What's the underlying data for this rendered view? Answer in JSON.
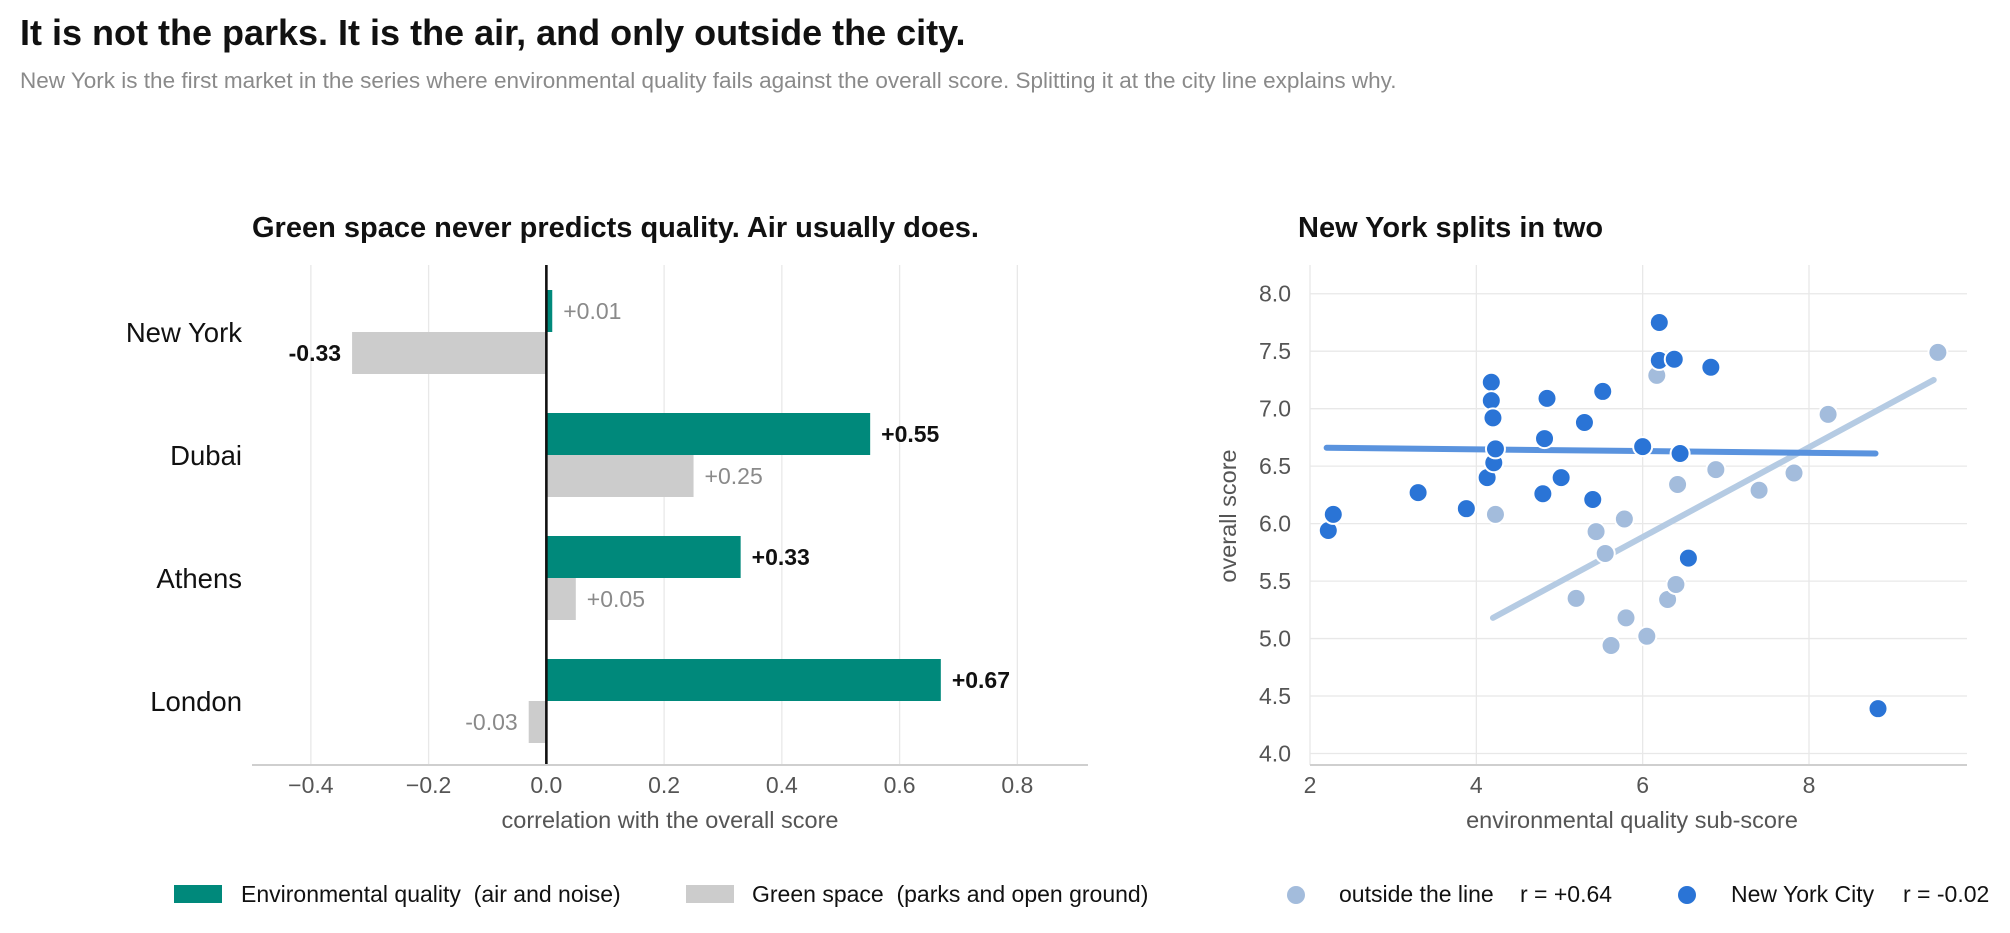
{
  "title": "It is not the parks. It is the air, and only outside the city.",
  "subtitle": "New York is the first market in the series where environmental quality fails against the overall score. Splitting it at the city line explains why.",
  "colors": {
    "environmental": "#00897b",
    "green_space": "#cccccc",
    "outside": "#a3bcdc",
    "nyc": "#2a74d6",
    "outside_fit": "#b5cbe3",
    "nyc_fit": "#5a93de"
  },
  "chart_data": [
    {
      "type": "bar",
      "title": "Green space never predicts quality. Air usually does.",
      "xlabel": "correlation with the overall score",
      "ylabel": "",
      "xlim": [
        -0.5,
        0.92
      ],
      "xticks": [
        "−0.4",
        "−0.2",
        "0.0",
        "0.2",
        "0.4",
        "0.6",
        "0.8"
      ],
      "xtick_values": [
        -0.4,
        -0.2,
        0.0,
        0.2,
        0.4,
        0.6,
        0.8
      ],
      "grid": true,
      "legend_position": "bottom",
      "categories": [
        "New York",
        "Dubai",
        "Athens",
        "London"
      ],
      "series": [
        {
          "name": "Environmental quality  (air and noise)",
          "values": [
            0.01,
            0.55,
            0.33,
            0.67
          ],
          "labels": [
            "+0.01",
            "+0.55",
            "+0.33",
            "+0.67"
          ],
          "label_emphasis": [
            false,
            true,
            true,
            true
          ]
        },
        {
          "name": "Green space  (parks and open ground)",
          "values": [
            -0.33,
            0.25,
            0.05,
            -0.03
          ],
          "labels": [
            "-0.33",
            "+0.25",
            "+0.05",
            "-0.03"
          ],
          "label_emphasis": [
            true,
            false,
            false,
            false
          ]
        }
      ]
    },
    {
      "type": "scatter",
      "title": "New York splits in two",
      "xlabel": "environmental quality sub-score",
      "ylabel": "overall score",
      "xlim": [
        2,
        9.9
      ],
      "ylim": [
        3.9,
        8.25
      ],
      "xticks": [
        "2",
        "4",
        "6",
        "8"
      ],
      "xtick_values": [
        2,
        4,
        6,
        8
      ],
      "yticks": [
        "4.0",
        "4.5",
        "5.0",
        "5.5",
        "6.0",
        "6.5",
        "7.0",
        "7.5",
        "8.0"
      ],
      "ytick_values": [
        4.0,
        4.5,
        5.0,
        5.5,
        6.0,
        6.5,
        7.0,
        7.5,
        8.0
      ],
      "grid": true,
      "legend_position": "bottom",
      "series": [
        {
          "name": "outside the line",
          "stat": "r = +0.64",
          "points": [
            [
              4.23,
              6.08
            ],
            [
              5.2,
              5.35
            ],
            [
              5.44,
              5.93
            ],
            [
              5.55,
              5.74
            ],
            [
              5.62,
              4.94
            ],
            [
              5.78,
              6.04
            ],
            [
              5.8,
              5.18
            ],
            [
              6.05,
              5.02
            ],
            [
              6.17,
              7.29
            ],
            [
              6.3,
              5.34
            ],
            [
              6.4,
              5.47
            ],
            [
              6.42,
              6.34
            ],
            [
              6.88,
              6.47
            ],
            [
              7.4,
              6.29
            ],
            [
              7.82,
              6.44
            ],
            [
              8.23,
              6.95
            ],
            [
              9.55,
              7.49
            ]
          ],
          "fit": [
            [
              4.2,
              5.18
            ],
            [
              9.5,
              7.25
            ]
          ]
        },
        {
          "name": "New York City",
          "stat": "r = -0.02",
          "points": [
            [
              2.22,
              5.94
            ],
            [
              2.28,
              6.08
            ],
            [
              3.3,
              6.27
            ],
            [
              3.88,
              6.13
            ],
            [
              4.13,
              6.4
            ],
            [
              4.18,
              7.23
            ],
            [
              4.18,
              7.07
            ],
            [
              4.2,
              6.92
            ],
            [
              4.21,
              6.53
            ],
            [
              4.23,
              6.65
            ],
            [
              4.8,
              6.26
            ],
            [
              4.82,
              6.74
            ],
            [
              4.85,
              7.09
            ],
            [
              5.02,
              6.4
            ],
            [
              5.3,
              6.88
            ],
            [
              5.4,
              6.21
            ],
            [
              5.52,
              7.15
            ],
            [
              6.0,
              6.67
            ],
            [
              6.2,
              7.75
            ],
            [
              6.2,
              7.42
            ],
            [
              6.38,
              7.43
            ],
            [
              6.45,
              6.61
            ],
            [
              6.55,
              5.7
            ],
            [
              6.82,
              7.36
            ],
            [
              8.83,
              4.39
            ]
          ],
          "fit": [
            [
              2.2,
              6.66
            ],
            [
              8.8,
              6.61
            ]
          ]
        }
      ]
    }
  ]
}
